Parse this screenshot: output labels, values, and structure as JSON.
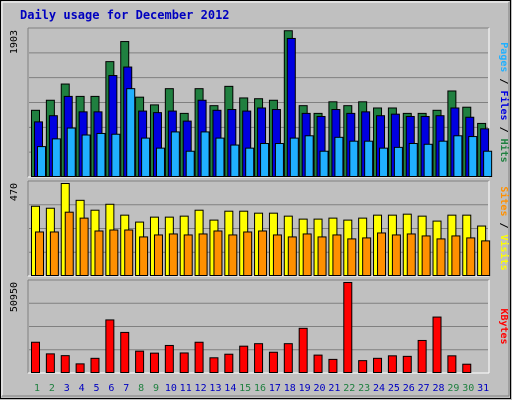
{
  "title": "Daily usage for December 2012",
  "colors": {
    "background": "#c0c0c0",
    "plot": "#c0c0c0",
    "grid": "#808080",
    "title": "#0000c0",
    "hits": "#208040",
    "files": "#0000e0",
    "pages": "#20b0ff",
    "visits": "#ffff00",
    "sites": "#ff9000",
    "kbytes": "#ff0000",
    "weekday_label": "#0000c0",
    "weekend_label": "#208040"
  },
  "legend": {
    "top": [
      {
        "text": "Pages",
        "color": "#20b0ff"
      },
      {
        "text": " / ",
        "color": "#000000"
      },
      {
        "text": "Files",
        "color": "#0000e0"
      },
      {
        "text": " / ",
        "color": "#000000"
      },
      {
        "text": "Hits",
        "color": "#208040"
      }
    ],
    "middle": [
      {
        "text": "Sites",
        "color": "#ff9000"
      },
      {
        "text": " / ",
        "color": "#000000"
      },
      {
        "text": "Visits",
        "color": "#ffff00"
      }
    ],
    "bottom": [
      {
        "text": "KBytes",
        "color": "#ff0000"
      }
    ]
  },
  "chart_data": [
    {
      "type": "bar",
      "ymax_label": "1903",
      "ylim": [
        0,
        1903
      ],
      "categories": [
        "1",
        "2",
        "3",
        "4",
        "5",
        "6",
        "7",
        "8",
        "9",
        "10",
        "11",
        "12",
        "13",
        "14",
        "15",
        "16",
        "17",
        "18",
        "19",
        "20",
        "21",
        "22",
        "23",
        "24",
        "25",
        "26",
        "27",
        "28",
        "29",
        "30",
        "31"
      ],
      "weekend_days": [
        "1",
        "2",
        "8",
        "9",
        "15",
        "16",
        "22",
        "23",
        "29",
        "30"
      ],
      "series": [
        {
          "name": "Hits",
          "values": [
            870,
            1000,
            1210,
            1050,
            1050,
            1500,
            1760,
            1040,
            940,
            1150,
            830,
            1150,
            930,
            1180,
            1030,
            1020,
            1000,
            1900,
            930,
            830,
            980,
            930,
            980,
            900,
            900,
            830,
            830,
            870,
            1120,
            910,
            700
          ]
        },
        {
          "name": "Files",
          "values": [
            720,
            800,
            1050,
            850,
            850,
            1320,
            1430,
            860,
            840,
            860,
            730,
            1000,
            870,
            880,
            860,
            900,
            880,
            1800,
            830,
            790,
            880,
            830,
            850,
            800,
            820,
            790,
            790,
            800,
            900,
            780,
            630
          ]
        },
        {
          "name": "Pages",
          "values": [
            400,
            500,
            640,
            550,
            570,
            560,
            1150,
            510,
            380,
            590,
            340,
            590,
            510,
            420,
            380,
            440,
            440,
            510,
            540,
            340,
            520,
            470,
            470,
            380,
            390,
            440,
            430,
            470,
            540,
            530,
            340
          ]
        }
      ]
    },
    {
      "type": "bar",
      "ymax_label": "470",
      "ylim": [
        0,
        470
      ],
      "categories": [
        "1",
        "2",
        "3",
        "4",
        "5",
        "6",
        "7",
        "8",
        "9",
        "10",
        "11",
        "12",
        "13",
        "14",
        "15",
        "16",
        "17",
        "18",
        "19",
        "20",
        "21",
        "22",
        "23",
        "24",
        "25",
        "26",
        "27",
        "28",
        "29",
        "30",
        "31"
      ],
      "series": [
        {
          "name": "Visits",
          "values": [
            355,
            345,
            470,
            385,
            335,
            365,
            310,
            275,
            300,
            300,
            305,
            335,
            285,
            330,
            330,
            320,
            320,
            305,
            290,
            290,
            295,
            285,
            295,
            310,
            310,
            315,
            305,
            280,
            310,
            310,
            255
          ]
        },
        {
          "name": "Sites",
          "values": [
            225,
            225,
            325,
            295,
            230,
            235,
            235,
            200,
            210,
            215,
            210,
            215,
            230,
            210,
            225,
            230,
            210,
            200,
            215,
            200,
            210,
            190,
            195,
            220,
            210,
            215,
            205,
            190,
            205,
            195,
            180
          ]
        }
      ]
    },
    {
      "type": "bar",
      "ymax_label": "50950",
      "ylim": [
        0,
        50950
      ],
      "categories": [
        "1",
        "2",
        "3",
        "4",
        "5",
        "6",
        "7",
        "8",
        "9",
        "10",
        "11",
        "12",
        "13",
        "14",
        "15",
        "16",
        "17",
        "18",
        "19",
        "20",
        "21",
        "22",
        "23",
        "24",
        "25",
        "26",
        "27",
        "28",
        "29",
        "30",
        "31"
      ],
      "series": [
        {
          "name": "KBytes",
          "values": [
            17500,
            11000,
            10000,
            5400,
            8500,
            30000,
            23000,
            12500,
            11400,
            15700,
            11500,
            17500,
            8800,
            10800,
            15300,
            16700,
            11900,
            16700,
            25300,
            10300,
            7900,
            50950,
            7200,
            8500,
            9900,
            9600,
            18500,
            31600,
            9900,
            5200,
            0
          ]
        }
      ]
    }
  ]
}
